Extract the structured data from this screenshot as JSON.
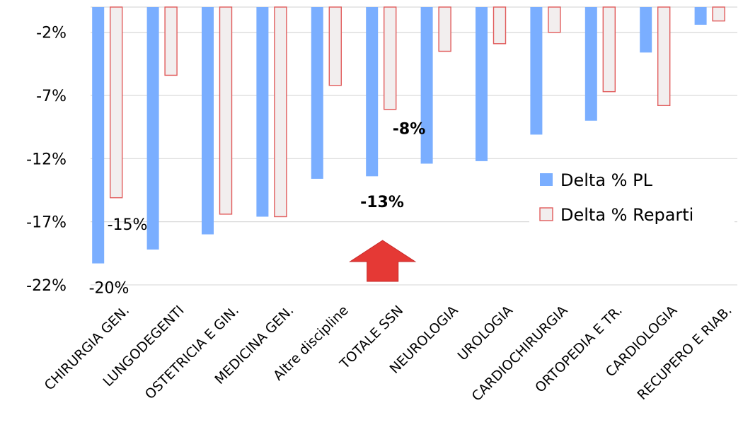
{
  "chart_data": {
    "type": "bar",
    "categories": [
      "CHIRURGIA GEN.",
      "LUNGODEGENTI",
      "OSTETRICIA E GIN.",
      "MEDICINA GEN.",
      "Altre discipline",
      "TOTALE SSN",
      "NEUROLOGIA",
      "UROLOGIA",
      "CARDIOCHIRURGIA",
      "ORTOPEDIA E TR.",
      "CARDIOLOGIA",
      "RECUPERO E RIAB."
    ],
    "series": [
      {
        "name": "Delta % PL",
        "color": "#7aaeff",
        "values": [
          -20.3,
          -19.2,
          -18.0,
          -16.6,
          -13.6,
          -13.4,
          -12.4,
          -12.2,
          -10.1,
          -9.0,
          -3.6,
          -1.4
        ]
      },
      {
        "name": "Delta % Reparti",
        "color": "#f2eeee",
        "stroke": "#e15b5b",
        "values": [
          -15.1,
          -5.4,
          -16.4,
          -16.6,
          -6.2,
          -8.1,
          -3.5,
          -2.9,
          -2.0,
          -6.7,
          -7.8,
          -1.1
        ]
      }
    ],
    "y_ticks": [
      -2,
      -7,
      -12,
      -17,
      -22
    ],
    "y_tick_labels": [
      "-2%",
      "-7%",
      "-12%",
      "-17%",
      "-22%"
    ],
    "ylim": [
      -22,
      0
    ],
    "grid": true,
    "legend_position": "right",
    "annotations": [
      {
        "text": "-15%",
        "category": 0,
        "y": -17.2,
        "bold": false
      },
      {
        "text": "-20%",
        "category": 0,
        "y": -22.2,
        "bold": false
      },
      {
        "text": "-8%",
        "category": 5,
        "y": -9.6,
        "bold": true
      },
      {
        "text": "-13%",
        "category": 5,
        "y": -15.4,
        "bold": true
      }
    ],
    "arrow": {
      "category": 5,
      "color": "#e53935",
      "direction": "up"
    }
  }
}
